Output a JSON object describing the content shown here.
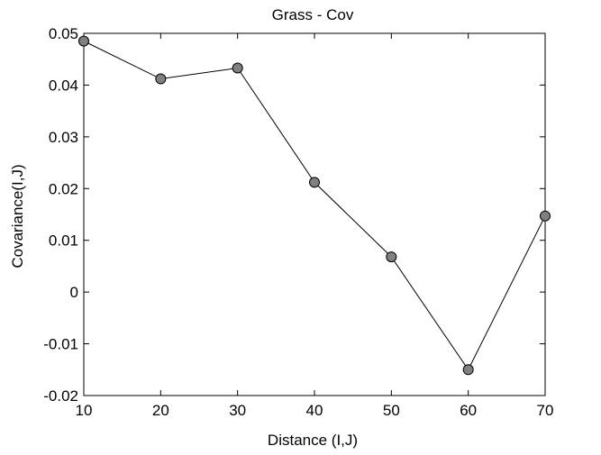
{
  "chart_data": {
    "type": "line",
    "title": "Grass - Cov",
    "xlabel": "Distance (I,J)",
    "ylabel": "Covariance(I,J)",
    "xlim": [
      10,
      70
    ],
    "ylim": [
      -0.02,
      0.05
    ],
    "xticks": [
      10,
      20,
      30,
      40,
      50,
      60,
      70
    ],
    "xtick_labels": [
      "10",
      "20",
      "30",
      "40",
      "50",
      "60",
      "70"
    ],
    "yticks": [
      0.05,
      0.04,
      0.03,
      0.02,
      0.01,
      0,
      -0.01,
      -0.02
    ],
    "ytick_labels": [
      "0.05",
      "0.04",
      "0.03",
      "0.02",
      "0.01",
      "0",
      "-0.01",
      "-0.02"
    ],
    "grid": false,
    "series": [
      {
        "x": [
          10,
          20,
          30,
          40,
          50,
          60,
          70
        ],
        "y": [
          0.0485,
          0.0412,
          0.0433,
          0.0212,
          0.0068,
          -0.015,
          0.0147
        ],
        "line_color": "#000000",
        "marker": "circle",
        "marker_fill": "#808080",
        "marker_edge": "#000000"
      }
    ]
  }
}
